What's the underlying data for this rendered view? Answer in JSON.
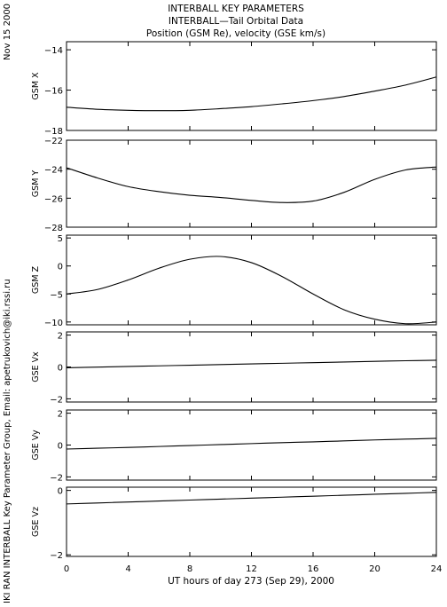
{
  "header": {
    "title_lines": [
      "INTERBALL KEY PARAMETERS",
      "INTERBALL—Tail Orbital Data",
      "Position (GSM Re), velocity (GSE km/s)"
    ],
    "date_stamp": "Nov 15 2000",
    "credit": "IKI RAN INTERBALL Key Parameter Group, Email: apetrukovich@iki.rssi.ru"
  },
  "chart_data": {
    "type": "line",
    "title": "INTERBALL KEY PARAMETERS",
    "xlabel": "UT hours of day 273 (Sep 29), 2000",
    "xlim": [
      0,
      24
    ],
    "xticks": [
      0,
      4,
      8,
      12,
      16,
      20,
      24
    ],
    "x_tick_labels": [
      "0",
      "4",
      "8",
      "12",
      "16",
      "20",
      "24"
    ],
    "x": [
      0,
      2,
      4,
      6,
      8,
      10,
      12,
      14,
      16,
      18,
      20,
      22,
      24
    ],
    "panels": [
      {
        "ylabel": "GSM X",
        "ylim": [
          -18,
          -13.6
        ],
        "yticks": [
          -18,
          -16,
          -14
        ],
        "y_tick_labels": [
          "−18",
          "−16",
          "−14"
        ],
        "series": [
          {
            "values": [
              -16.85,
              -16.95,
              -17.0,
              -17.02,
              -17.0,
              -16.92,
              -16.82,
              -16.68,
              -16.52,
              -16.32,
              -16.05,
              -15.75,
              -15.35
            ]
          }
        ]
      },
      {
        "ylabel": "GSM Y",
        "ylim": [
          -28,
          -22
        ],
        "yticks": [
          -28,
          -26,
          -24,
          -22
        ],
        "y_tick_labels": [
          "−28",
          "−26",
          "−24",
          "−22"
        ],
        "series": [
          {
            "values": [
              -23.9,
              -24.6,
              -25.2,
              -25.55,
              -25.8,
              -25.95,
              -26.15,
              -26.3,
              -26.2,
              -25.6,
              -24.7,
              -24.05,
              -23.85
            ]
          }
        ]
      },
      {
        "ylabel": "GSM Z",
        "ylim": [
          -10.5,
          5.5
        ],
        "yticks": [
          -10,
          -5,
          0,
          5
        ],
        "y_tick_labels": [
          "−10",
          "−5",
          "0",
          "5"
        ],
        "series": [
          {
            "values": [
              -5.0,
              -4.2,
              -2.5,
              -0.4,
              1.2,
              1.7,
              0.6,
              -1.9,
              -5.0,
              -7.8,
              -9.5,
              -10.3,
              -10.0
            ]
          }
        ]
      },
      {
        "ylabel": "GSE Vx",
        "ylim": [
          -2.2,
          2.2
        ],
        "yticks": [
          -2,
          0,
          2
        ],
        "y_tick_labels": [
          "−2",
          "0",
          "2"
        ],
        "series": [
          {
            "values": [
              -0.05,
              -0.01,
              0.03,
              0.07,
              0.11,
              0.15,
              0.19,
              0.23,
              0.27,
              0.31,
              0.35,
              0.39,
              0.42
            ]
          }
        ]
      },
      {
        "ylabel": "GSE Vy",
        "ylim": [
          -2.2,
          2.2
        ],
        "yticks": [
          -2,
          0,
          2
        ],
        "y_tick_labels": [
          "−2",
          "0",
          "2"
        ],
        "series": [
          {
            "values": [
              -0.25,
              -0.2,
              -0.15,
              -0.09,
              -0.03,
              0.03,
              0.09,
              0.15,
              0.2,
              0.26,
              0.32,
              0.37,
              0.42
            ]
          }
        ]
      },
      {
        "ylabel": "GSE Vz",
        "ylim": [
          -2.05,
          0.1
        ],
        "yticks": [
          -2,
          0
        ],
        "y_tick_labels": [
          "−2",
          "0"
        ],
        "series": [
          {
            "values": [
              -0.42,
              -0.39,
              -0.36,
              -0.33,
              -0.3,
              -0.27,
              -0.24,
              -0.21,
              -0.18,
              -0.15,
              -0.12,
              -0.09,
              -0.06
            ]
          }
        ]
      }
    ],
    "grid": false,
    "line_color": "#000000"
  }
}
